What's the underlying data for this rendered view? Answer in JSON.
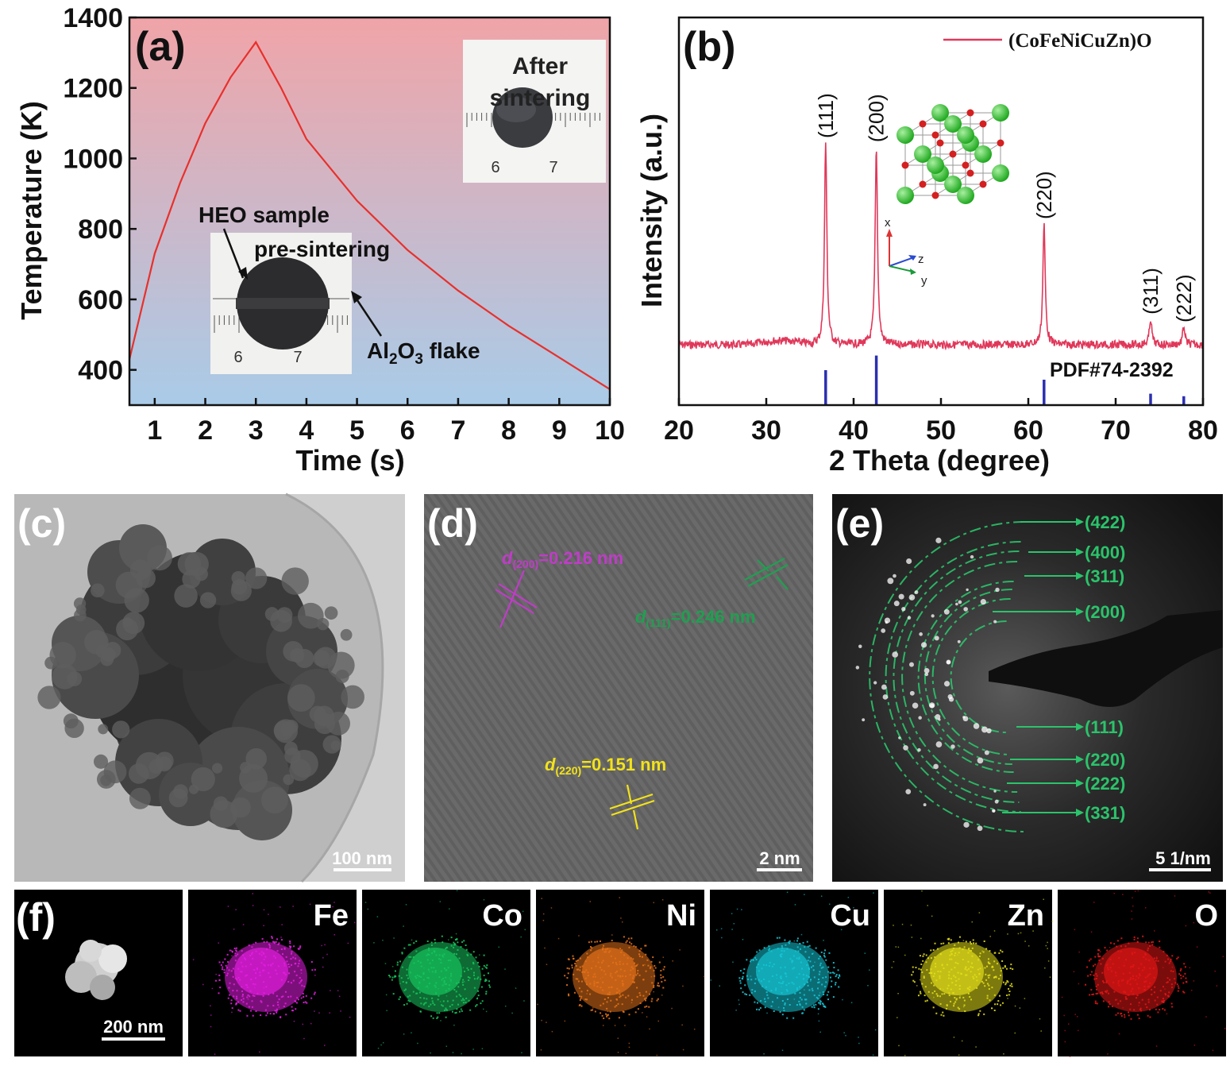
{
  "panels": {
    "a": "(a)",
    "b": "(b)",
    "c": "(c)",
    "d": "(d)",
    "e": "(e)",
    "f": "(f)"
  },
  "chart_data": [
    {
      "type": "line",
      "panel": "a",
      "xlabel": "Time (s)",
      "ylabel": "Temperature (K)",
      "xlim": [
        0.5,
        10
      ],
      "ylim": [
        300,
        1400
      ],
      "xticks": [
        1,
        2,
        3,
        4,
        5,
        6,
        7,
        8,
        9,
        10
      ],
      "yticks": [
        400,
        600,
        800,
        1000,
        1200,
        1400
      ],
      "background": {
        "top": "#f0a4a8",
        "bottom": "#a9cbe8"
      },
      "line_color": "#e8302c",
      "x": [
        0.5,
        1,
        1.5,
        2,
        2.5,
        3,
        3.5,
        4,
        5,
        6,
        7,
        8,
        9,
        10
      ],
      "y": [
        430,
        730,
        930,
        1100,
        1230,
        1330,
        1200,
        1055,
        880,
        740,
        625,
        525,
        435,
        345
      ],
      "annotations": {
        "after_line1": "After",
        "after_line2": "sintering",
        "heo_sample": "HEO sample",
        "pre_sintering": "pre-sintering",
        "al2o3_a": "Al",
        "al2o3_sub1": "2",
        "al2o3_b": "O",
        "al2o3_sub2": "3",
        "al2o3_c": " flake",
        "ruler_after": [
          "6",
          "7"
        ],
        "ruler_pre": [
          "6",
          "7"
        ]
      }
    },
    {
      "type": "line",
      "panel": "b",
      "xlabel": "2 Theta (degree)",
      "ylabel": "Intensity (a.u.)",
      "xlim": [
        20,
        80
      ],
      "xticks": [
        20,
        30,
        40,
        50,
        60,
        70,
        80
      ],
      "legend": "(CoFeNiCuZn)O",
      "line_color": "#e0385a",
      "reference_label": "PDF#74-2392",
      "reference_color": "#2b2fb0",
      "peaks": [
        {
          "label": "(111)",
          "x": 36.8,
          "intensity": 1.0
        },
        {
          "label": "(200)",
          "x": 42.6,
          "intensity": 0.98
        },
        {
          "label": "(220)",
          "x": 61.8,
          "intensity": 0.6
        },
        {
          "label": "(311)",
          "x": 74.0,
          "intensity": 0.13
        },
        {
          "label": "(222)",
          "x": 77.8,
          "intensity": 0.09
        }
      ],
      "reference_sticks": [
        {
          "x": 36.8,
          "height": 0.55
        },
        {
          "x": 42.6,
          "height": 0.78
        },
        {
          "x": 61.8,
          "height": 0.4
        },
        {
          "x": 74.0,
          "height": 0.18
        },
        {
          "x": 77.8,
          "height": 0.14
        }
      ],
      "axes_labels": {
        "x": "x",
        "y": "y",
        "z": "z"
      }
    }
  ],
  "micrographs": {
    "c": {
      "scale_bar": "100 nm"
    },
    "d": {
      "scale_bar": "2 nm",
      "d200_a": "d",
      "d200_sub": "(200)",
      "d200_b": "=0.216 nm",
      "d111_a": "d",
      "d111_sub": "(111)",
      "d111_b": "=0.246 nm",
      "d220_a": "d",
      "d220_sub": "(220)",
      "d220_b": "=0.151 nm",
      "colors": {
        "d200": "#c03cc8",
        "d111": "#1fa050",
        "d220": "#f2e21a"
      }
    },
    "e": {
      "scale_bar": "5 1/nm",
      "rings": [
        "(422)",
        "(400)",
        "(311)",
        "(200)",
        "(111)",
        "(220)",
        "(222)",
        "(331)"
      ],
      "color": "#2bc36b"
    }
  },
  "eds_maps": [
    {
      "element": "",
      "scale_bar": "200 nm",
      "color": "#d8d8d8"
    },
    {
      "element": "Fe",
      "color": "#e21ee0"
    },
    {
      "element": "Co",
      "color": "#17c35d"
    },
    {
      "element": "Ni",
      "color": "#e2711a"
    },
    {
      "element": "Cu",
      "color": "#16c4d4"
    },
    {
      "element": "Zn",
      "color": "#e1dd19"
    },
    {
      "element": "O",
      "color": "#e01616"
    }
  ]
}
